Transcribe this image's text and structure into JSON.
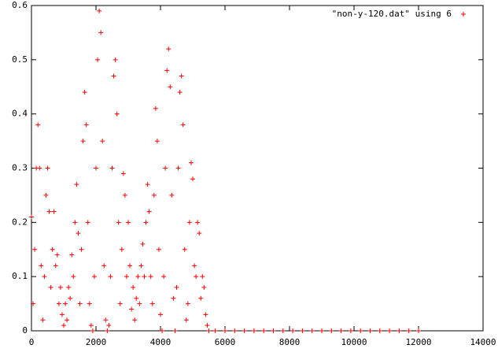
{
  "chart_data": {
    "type": "scatter",
    "series": [
      {
        "name": "\"non-y-120.dat\" using 6",
        "color": "#ff0000",
        "x": [
          0,
          50,
          100,
          150,
          200,
          250,
          300,
          350,
          400,
          450,
          500,
          550,
          600,
          650,
          700,
          750,
          800,
          850,
          900,
          950,
          1000,
          1050,
          1100,
          1150,
          1200,
          1250,
          1300,
          1350,
          1400,
          1450,
          1500,
          1550,
          1600,
          1650,
          1700,
          1750,
          1800,
          1850,
          1900,
          1950,
          2000,
          2050,
          2100,
          2150,
          2200,
          2250,
          2300,
          2350,
          2400,
          2450,
          2500,
          2550,
          2600,
          2650,
          2700,
          2750,
          2800,
          2850,
          2900,
          2950,
          3000,
          3050,
          3100,
          3150,
          3200,
          3250,
          3300,
          3350,
          3400,
          3450,
          3500,
          3550,
          3600,
          3650,
          3700,
          3750,
          3800,
          3850,
          3900,
          3950,
          4000,
          4050,
          4100,
          4150,
          4200,
          4250,
          4300,
          4350,
          4400,
          4450,
          4500,
          4550,
          4600,
          4650,
          4700,
          4750,
          4800,
          4850,
          4900,
          4950,
          5000,
          5050,
          5100,
          5150,
          5200,
          5250,
          5300,
          5350,
          5400,
          5450,
          5500,
          5700,
          6000,
          6300,
          6600,
          6900,
          7200,
          7500,
          7800,
          8100,
          8400,
          8700,
          9000,
          9300,
          9600,
          9900,
          10200,
          10500,
          10800,
          11100,
          11400,
          11700,
          12000
        ],
        "values": [
          0.21,
          0.05,
          0.15,
          0.3,
          0.38,
          0.3,
          0.12,
          0.02,
          0.1,
          0.25,
          0.3,
          0.22,
          0.08,
          0.15,
          0.22,
          0.12,
          0.14,
          0.05,
          0.08,
          0.03,
          0.01,
          0.05,
          0.02,
          0.08,
          0.06,
          0.14,
          0.1,
          0.2,
          0.27,
          0.18,
          0.05,
          0.15,
          0.35,
          0.44,
          0.38,
          0.2,
          0.05,
          0.01,
          0,
          0.1,
          0.3,
          0.5,
          0.59,
          0.55,
          0.35,
          0.12,
          0.02,
          0,
          0.01,
          0.1,
          0.3,
          0.47,
          0.5,
          0.4,
          0.2,
          0.05,
          0.15,
          0.29,
          0.25,
          0.1,
          0.2,
          0.12,
          0.04,
          0.08,
          0.02,
          0.06,
          0.1,
          0.05,
          0.12,
          0.16,
          0.1,
          0.2,
          0.27,
          0.22,
          0.1,
          0.05,
          0.25,
          0.41,
          0.35,
          0.15,
          0.03,
          0,
          0.1,
          0.3,
          0.48,
          0.52,
          0.45,
          0.25,
          0.06,
          0,
          0.08,
          0.3,
          0.44,
          0.47,
          0.38,
          0.15,
          0.02,
          0.05,
          0.2,
          0.31,
          0.28,
          0.12,
          0.1,
          0.2,
          0.18,
          0.06,
          0.1,
          0.08,
          0.03,
          0.01,
          0,
          0,
          0,
          0,
          0,
          0,
          0,
          0,
          0,
          0,
          0,
          0,
          0,
          0,
          0,
          0,
          0,
          0,
          0,
          0,
          0,
          0,
          0
        ]
      }
    ],
    "xlim": [
      0,
      14000
    ],
    "xticks": [
      0,
      2000,
      4000,
      6000,
      8000,
      10000,
      12000,
      14000
    ],
    "ylim": [
      0,
      0.6
    ],
    "yticks": [
      0,
      0.1,
      0.2,
      0.3,
      0.4,
      0.5,
      0.6
    ],
    "grid": false,
    "legend": "top-right"
  }
}
